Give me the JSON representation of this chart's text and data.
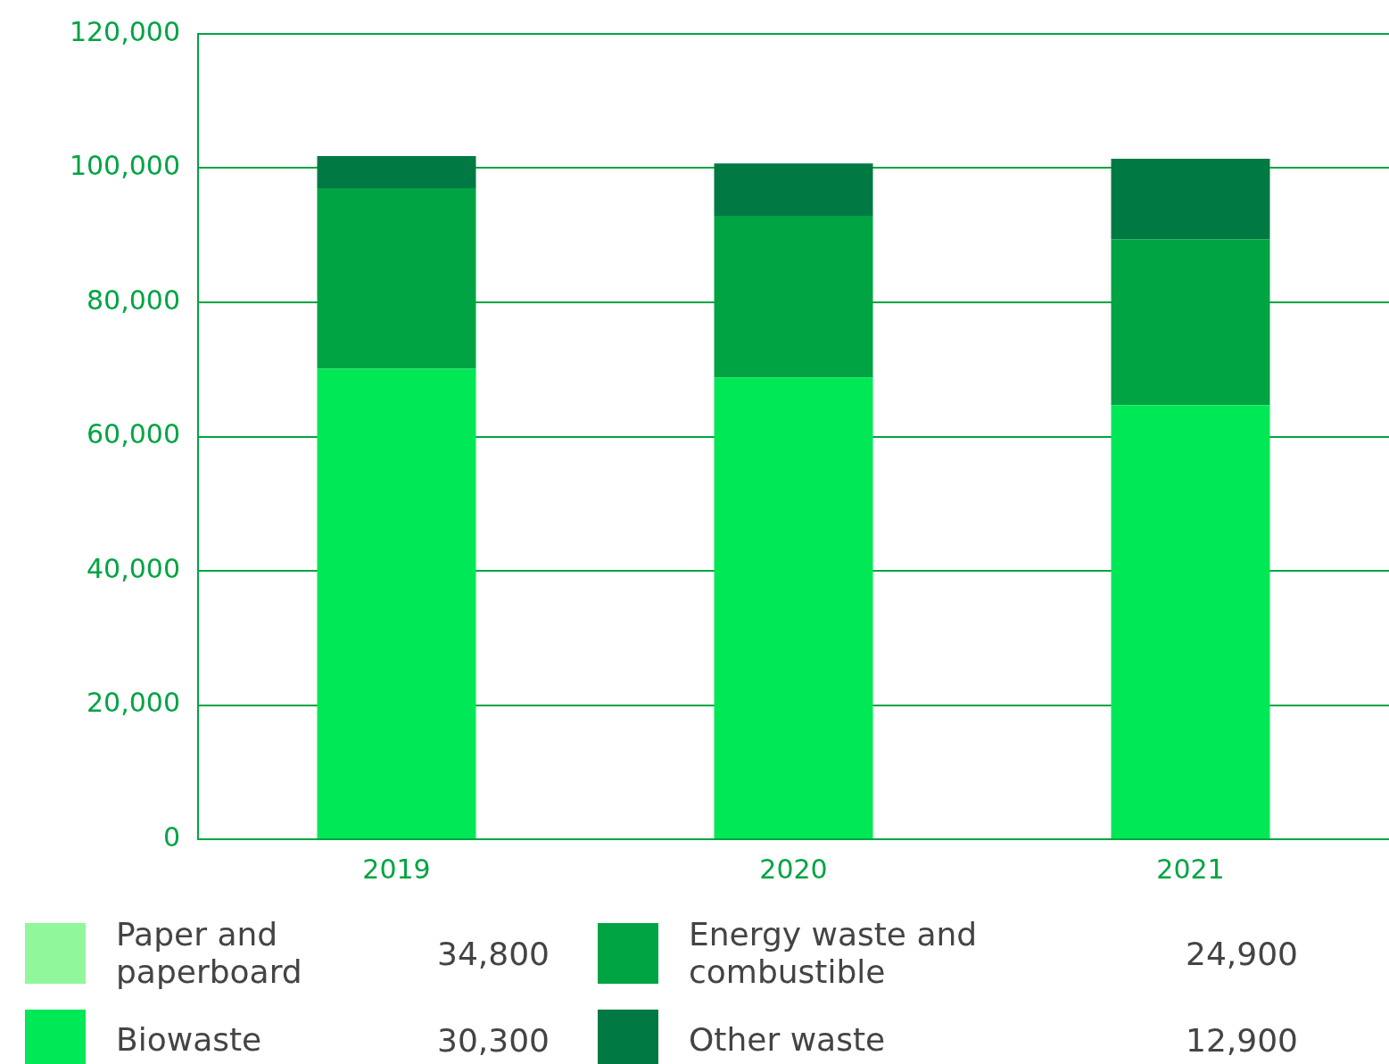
{
  "chart_data": {
    "type": "bar",
    "stacked": true,
    "categories": [
      "2019",
      "2020",
      "2021"
    ],
    "series": [
      {
        "name": "Paper and paperboard",
        "color": "#90f79a",
        "values": [
          null,
          null,
          null
        ]
      },
      {
        "name": "Biowaste",
        "color": "#00e855",
        "values": [
          70100,
          68800,
          64700
        ]
      },
      {
        "name": "Energy waste and combustible",
        "color": "#00a443",
        "values": [
          26900,
          24100,
          24700
        ]
      },
      {
        "name": "Other waste",
        "color": "#007a42",
        "values": [
          4800,
          7800,
          12000
        ]
      }
    ],
    "ylim": [
      0,
      120000
    ],
    "yticks": [
      0,
      {
        "value": 20000,
        "label": "20,000"
      },
      {
        "value": 40000,
        "label": "40,000"
      },
      {
        "value": 60000,
        "label": "60,000"
      },
      {
        "value": 80000,
        "label": "80,000"
      },
      {
        "value": 100000,
        "label": "100,000"
      },
      {
        "value": 120000,
        "label": "120,000"
      }
    ],
    "grid": "y",
    "legend": "bottom",
    "annotations": [
      "34,800",
      "30,300",
      "24,900",
      "12,900"
    ]
  }
}
